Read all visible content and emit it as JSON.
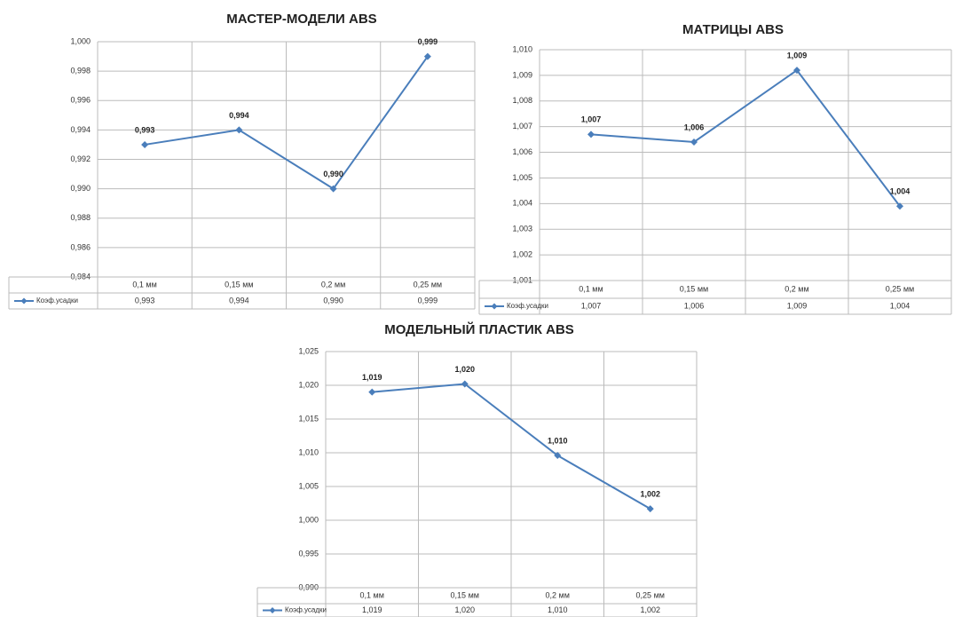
{
  "chart_data": [
    {
      "type": "line",
      "title": "МАСТЕР-МОДЕЛИ ABS",
      "categories": [
        "0,1 мм",
        "0,15 мм",
        "0,2 мм",
        "0,25 мм"
      ],
      "series": [
        {
          "name": "Коэф.усадки",
          "color": "#4a7ebb",
          "values": [
            0.993,
            0.994,
            0.99,
            0.999
          ],
          "value_labels": [
            "0,993",
            "0,994",
            "0,990",
            "0,999"
          ]
        }
      ],
      "ylim": [
        0.984,
        1.0
      ],
      "yticks": [
        {
          "value": 0.984,
          "label": "0,984"
        },
        {
          "value": 0.986,
          "label": "0,986"
        },
        {
          "value": 0.988,
          "label": "0,988"
        },
        {
          "value": 0.99,
          "label": "0,990"
        },
        {
          "value": 0.992,
          "label": "0,992"
        },
        {
          "value": 0.994,
          "label": "0,994"
        },
        {
          "value": 0.996,
          "label": "0,996"
        },
        {
          "value": 0.998,
          "label": "0,998"
        },
        {
          "value": 1.0,
          "label": "1,000"
        }
      ],
      "grid": true
    },
    {
      "type": "line",
      "title": "МАТРИЦЫ ABS",
      "categories": [
        "0,1 мм",
        "0,15 мм",
        "0,2 мм",
        "0,25 мм"
      ],
      "series": [
        {
          "name": "Коэф.усадки",
          "color": "#4a7ebb",
          "values": [
            1.0067,
            1.0064,
            1.0092,
            1.0039
          ],
          "value_labels": [
            "1,007",
            "1,006",
            "1,009",
            "1,004"
          ]
        }
      ],
      "ylim": [
        1.001,
        1.01
      ],
      "yticks": [
        {
          "value": 1.001,
          "label": "1,001"
        },
        {
          "value": 1.002,
          "label": "1,002"
        },
        {
          "value": 1.003,
          "label": "1,003"
        },
        {
          "value": 1.004,
          "label": "1,004"
        },
        {
          "value": 1.005,
          "label": "1,005"
        },
        {
          "value": 1.006,
          "label": "1,006"
        },
        {
          "value": 1.007,
          "label": "1,007"
        },
        {
          "value": 1.008,
          "label": "1,008"
        },
        {
          "value": 1.009,
          "label": "1,009"
        },
        {
          "value": 1.01,
          "label": "1,010"
        }
      ],
      "grid": true
    },
    {
      "type": "line",
      "title": "МОДЕЛЬНЫЙ ПЛАСТИК ABS",
      "categories": [
        "0,1 мм",
        "0,15 мм",
        "0,2 мм",
        "0,25 мм"
      ],
      "series": [
        {
          "name": "Коэф.усадки",
          "color": "#4a7ebb",
          "values": [
            1.019,
            1.0202,
            1.0096,
            1.0017
          ],
          "value_labels": [
            "1,019",
            "1,020",
            "1,010",
            "1,002"
          ]
        }
      ],
      "ylim": [
        0.99,
        1.025
      ],
      "yticks": [
        {
          "value": 0.99,
          "label": "0,990"
        },
        {
          "value": 0.995,
          "label": "0,995"
        },
        {
          "value": 1.0,
          "label": "1,000"
        },
        {
          "value": 1.005,
          "label": "1,005"
        },
        {
          "value": 1.01,
          "label": "1,010"
        },
        {
          "value": 1.015,
          "label": "1,015"
        },
        {
          "value": 1.02,
          "label": "1,020"
        },
        {
          "value": 1.025,
          "label": "1,025"
        }
      ],
      "grid": true
    }
  ]
}
